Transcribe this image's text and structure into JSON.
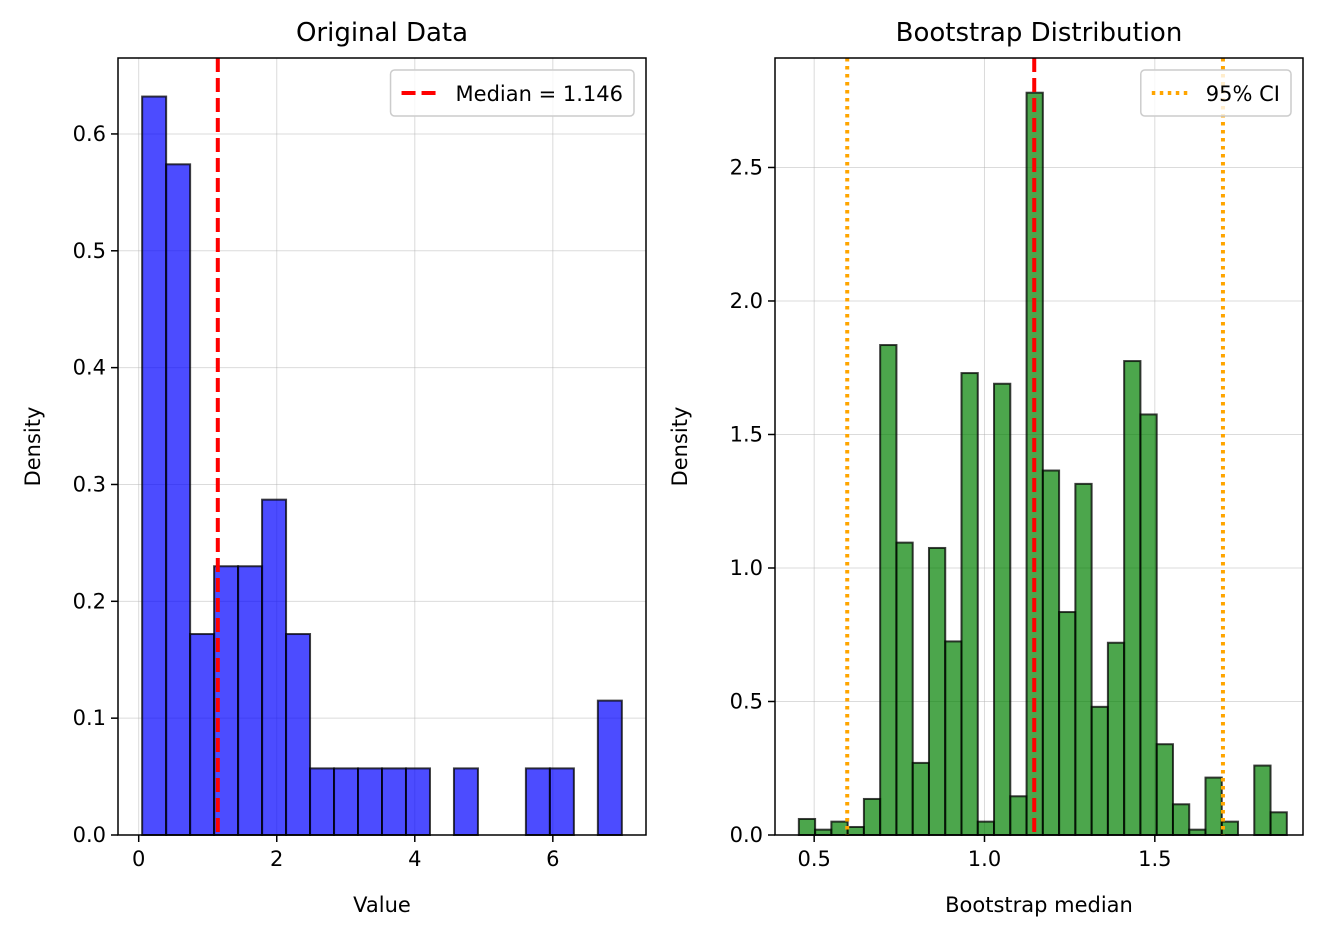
{
  "chart_data": [
    {
      "type": "histogram",
      "title": "Original Data",
      "xlabel": "Value",
      "ylabel": "Density",
      "xlim": [
        -0.3,
        7.35
      ],
      "ylim": [
        0,
        0.665
      ],
      "xticks": [
        0,
        2,
        4,
        6
      ],
      "yticks": [
        0.0,
        0.1,
        0.2,
        0.3,
        0.4,
        0.5,
        0.6
      ],
      "ytick_decimals": 1,
      "grid": true,
      "legend_position": "top-right",
      "bin_start": 0.05,
      "bin_width": 0.3475,
      "values": [
        0.632,
        0.574,
        0.172,
        0.23,
        0.23,
        0.287,
        0.172,
        0.057,
        0.057,
        0.057,
        0.057,
        0.057,
        0,
        0.057,
        0,
        0,
        0.057,
        0.057,
        0,
        0.115
      ],
      "bar_color": "#0000ff",
      "bar_alpha": 0.7,
      "lines": [
        {
          "x": 1.146,
          "color": "#ff0000",
          "style": "dashed",
          "label": "Median = 1.146"
        }
      ]
    },
    {
      "type": "histogram",
      "title": "Bootstrap Distribution",
      "xlabel": "Bootstrap median",
      "ylabel": "Density",
      "xlim": [
        0.385,
        1.935
      ],
      "ylim": [
        0,
        2.91
      ],
      "xticks": [
        0.5,
        1.0,
        1.5
      ],
      "yticks": [
        0.0,
        0.5,
        1.0,
        1.5,
        2.0,
        2.5
      ],
      "ytick_decimals": 1,
      "grid": true,
      "legend_position": "top-right",
      "bin_start": 0.455,
      "bin_width": 0.04775,
      "values": [
        0.06,
        0.02,
        0.05,
        0.03,
        0.135,
        1.835,
        1.095,
        0.27,
        1.075,
        0.725,
        1.73,
        0.05,
        1.69,
        0.145,
        2.78,
        1.365,
        0.835,
        1.315,
        0.48,
        0.72,
        1.775,
        1.575,
        0.34,
        0.115,
        0.02,
        0.215,
        0.05,
        0,
        0.26,
        0.085
      ],
      "bar_color": "#008000",
      "bar_alpha": 0.7,
      "lines": [
        {
          "x": 1.146,
          "color": "#ff0000",
          "style": "dashed",
          "label": ""
        },
        {
          "x": 0.597,
          "color": "#ffa500",
          "style": "dotted",
          "label": "95% CI"
        },
        {
          "x": 1.7,
          "color": "#ffa500",
          "style": "dotted",
          "label": ""
        }
      ]
    }
  ]
}
